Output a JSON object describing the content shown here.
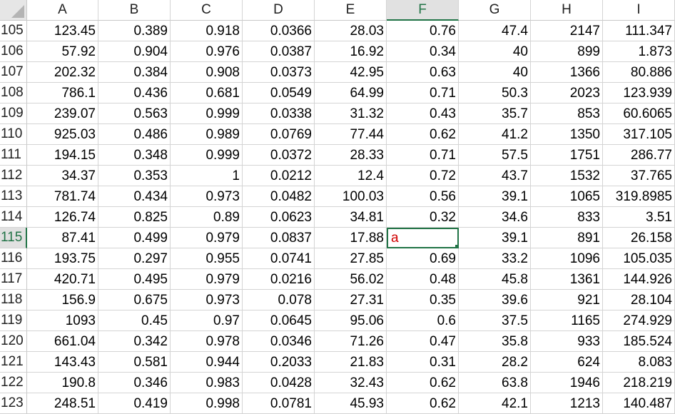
{
  "columns": [
    "A",
    "B",
    "C",
    "D",
    "E",
    "F",
    "G",
    "H",
    "I"
  ],
  "selected_column": "F",
  "selected_row": "115",
  "active_cell_value": "a",
  "rows": [
    {
      "num": "105",
      "cells": [
        "123.45",
        "0.389",
        "0.918",
        "0.0366",
        "28.03",
        "0.76",
        "47.4",
        "2147",
        "111.347"
      ]
    },
    {
      "num": "106",
      "cells": [
        "57.92",
        "0.904",
        "0.976",
        "0.0387",
        "16.92",
        "0.34",
        "40",
        "899",
        "1.873"
      ]
    },
    {
      "num": "107",
      "cells": [
        "202.32",
        "0.384",
        "0.908",
        "0.0373",
        "42.95",
        "0.63",
        "40",
        "1366",
        "80.886"
      ]
    },
    {
      "num": "108",
      "cells": [
        "786.1",
        "0.436",
        "0.681",
        "0.0549",
        "64.99",
        "0.71",
        "50.3",
        "2023",
        "123.939"
      ]
    },
    {
      "num": "109",
      "cells": [
        "239.07",
        "0.563",
        "0.999",
        "0.0338",
        "31.32",
        "0.43",
        "35.7",
        "853",
        "60.6065"
      ]
    },
    {
      "num": "110",
      "cells": [
        "925.03",
        "0.486",
        "0.989",
        "0.0769",
        "77.44",
        "0.62",
        "41.2",
        "1350",
        "317.105"
      ]
    },
    {
      "num": "111",
      "cells": [
        "194.15",
        "0.348",
        "0.999",
        "0.0372",
        "28.33",
        "0.71",
        "57.5",
        "1751",
        "286.77"
      ]
    },
    {
      "num": "112",
      "cells": [
        "34.37",
        "0.353",
        "1",
        "0.0212",
        "12.4",
        "0.72",
        "43.7",
        "1532",
        "37.765"
      ]
    },
    {
      "num": "113",
      "cells": [
        "781.74",
        "0.434",
        "0.973",
        "0.0482",
        "100.03",
        "0.56",
        "39.1",
        "1065",
        "319.8985"
      ]
    },
    {
      "num": "114",
      "cells": [
        "126.74",
        "0.825",
        "0.89",
        "0.0623",
        "34.81",
        "0.32",
        "34.6",
        "833",
        "3.51"
      ]
    },
    {
      "num": "115",
      "cells": [
        "87.41",
        "0.499",
        "0.979",
        "0.0837",
        "17.88",
        "a",
        "39.1",
        "891",
        "26.158"
      ]
    },
    {
      "num": "116",
      "cells": [
        "193.75",
        "0.297",
        "0.955",
        "0.0741",
        "27.85",
        "0.69",
        "33.2",
        "1096",
        "105.035"
      ]
    },
    {
      "num": "117",
      "cells": [
        "420.71",
        "0.495",
        "0.979",
        "0.0216",
        "56.02",
        "0.48",
        "45.8",
        "1361",
        "144.926"
      ]
    },
    {
      "num": "118",
      "cells": [
        "156.9",
        "0.675",
        "0.973",
        "0.078",
        "27.31",
        "0.35",
        "39.6",
        "921",
        "28.104"
      ]
    },
    {
      "num": "119",
      "cells": [
        "1093",
        "0.45",
        "0.97",
        "0.0645",
        "95.06",
        "0.6",
        "37.5",
        "1165",
        "274.929"
      ]
    },
    {
      "num": "120",
      "cells": [
        "661.04",
        "0.342",
        "0.978",
        "0.0346",
        "71.26",
        "0.47",
        "35.8",
        "933",
        "185.524"
      ]
    },
    {
      "num": "121",
      "cells": [
        "143.43",
        "0.581",
        "0.944",
        "0.2033",
        "21.83",
        "0.31",
        "28.2",
        "624",
        "8.083"
      ]
    },
    {
      "num": "122",
      "cells": [
        "190.8",
        "0.346",
        "0.983",
        "0.0428",
        "32.43",
        "0.62",
        "63.8",
        "1946",
        "218.219"
      ]
    },
    {
      "num": "123",
      "cells": [
        "248.51",
        "0.419",
        "0.998",
        "0.0781",
        "45.93",
        "0.62",
        "42.1",
        "1213",
        "140.487"
      ]
    }
  ]
}
